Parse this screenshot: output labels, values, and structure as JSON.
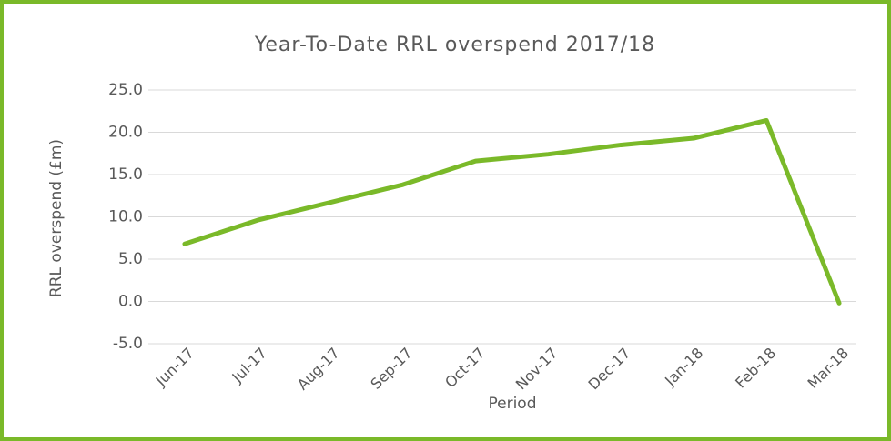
{
  "chart_data": {
    "type": "line",
    "title": "Year-To-Date RRL overspend 2017/18",
    "x_label": "Period",
    "y_label": "RRL overspend (£m)",
    "categories": [
      "Jun-17",
      "Jul-17",
      "Aug-17",
      "Sep-17",
      "Oct-17",
      "Nov-17",
      "Dec-17",
      "Jan-18",
      "Feb-18",
      "Mar-18"
    ],
    "series": [
      {
        "name": "RRL overspend",
        "color": "#7ab929",
        "values": [
          6.8,
          9.6,
          11.7,
          13.8,
          16.6,
          17.4,
          18.5,
          19.3,
          21.4,
          -0.2
        ]
      }
    ],
    "ylim": [
      -5,
      25
    ],
    "yticks": [
      {
        "value": -5,
        "label": "-5.0"
      },
      {
        "value": 0,
        "label": "0.0"
      },
      {
        "value": 5,
        "label": "5.0"
      },
      {
        "value": 10,
        "label": "10.0"
      },
      {
        "value": 15,
        "label": "15.0"
      },
      {
        "value": 20,
        "label": "20.0"
      },
      {
        "value": 25,
        "label": "25.0"
      }
    ],
    "grid": true
  }
}
